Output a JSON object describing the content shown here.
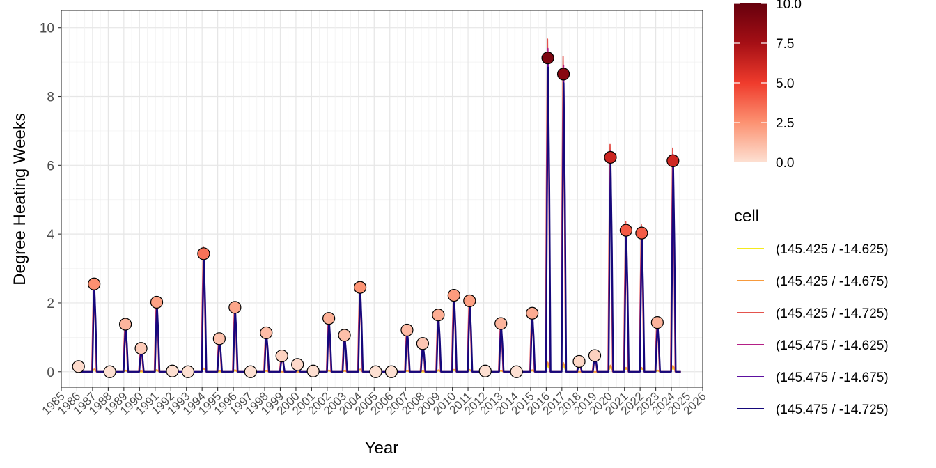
{
  "chart_data": {
    "type": "line",
    "xlabel": "Year",
    "ylabel": "Degree Heating Weeks",
    "xlim": [
      1985,
      2026
    ],
    "ylim": [
      -0.45,
      10.5
    ],
    "y_ticks": [
      0,
      2,
      4,
      6,
      8,
      10
    ],
    "x_ticks": [
      1985,
      1986,
      1987,
      1988,
      1989,
      1990,
      1991,
      1992,
      1993,
      1994,
      1995,
      1996,
      1997,
      1998,
      1999,
      2000,
      2001,
      2002,
      2003,
      2004,
      2005,
      2006,
      2007,
      2008,
      2009,
      2010,
      2011,
      2012,
      2013,
      2014,
      2015,
      2016,
      2017,
      2018,
      2019,
      2020,
      2021,
      2022,
      2023,
      2024,
      2025,
      2026
    ],
    "grid": true,
    "colorbar": {
      "ticks": [
        0.0,
        2.5,
        5.0,
        7.5,
        10.0
      ],
      "tick_labels": [
        "0.0",
        "2.5",
        "5.0",
        "7.5",
        "10.0"
      ],
      "range": [
        0,
        10
      ],
      "colors": [
        "#fde0d2",
        "#fc9272",
        "#ef3b2c",
        "#a50f15",
        "#67000d"
      ]
    },
    "legend": {
      "title": "cell",
      "placement": "right",
      "entries": [
        {
          "name": "(145.425 / -14.625)",
          "color": "#f4ea1e"
        },
        {
          "name": "(145.425 / -14.675)",
          "color": "#f79a3c"
        },
        {
          "name": "(145.425 / -14.725)",
          "color": "#e4534d"
        },
        {
          "name": "(145.475 / -14.625)",
          "color": "#b41f86"
        },
        {
          "name": "(145.475 / -14.675)",
          "color": "#5c0fa0"
        },
        {
          "name": "(145.475 / -14.725)",
          "color": "#15087a"
        }
      ]
    },
    "annual_max": [
      {
        "x": 1986.1,
        "y": 0.15
      },
      {
        "x": 1987.1,
        "y": 2.55
      },
      {
        "x": 1988.1,
        "y": 0.0
      },
      {
        "x": 1989.1,
        "y": 1.38
      },
      {
        "x": 1990.1,
        "y": 0.68
      },
      {
        "x": 1991.1,
        "y": 2.02
      },
      {
        "x": 1992.1,
        "y": 0.02
      },
      {
        "x": 1993.1,
        "y": 0.0
      },
      {
        "x": 1994.1,
        "y": 3.43
      },
      {
        "x": 1995.1,
        "y": 0.96
      },
      {
        "x": 1996.1,
        "y": 1.87
      },
      {
        "x": 1997.1,
        "y": 0.0
      },
      {
        "x": 1998.1,
        "y": 1.13
      },
      {
        "x": 1999.1,
        "y": 0.46
      },
      {
        "x": 2000.1,
        "y": 0.21
      },
      {
        "x": 2001.1,
        "y": 0.02
      },
      {
        "x": 2002.1,
        "y": 1.55
      },
      {
        "x": 2003.1,
        "y": 1.06
      },
      {
        "x": 2004.1,
        "y": 2.45
      },
      {
        "x": 2005.1,
        "y": 0.0
      },
      {
        "x": 2006.1,
        "y": 0.0
      },
      {
        "x": 2007.1,
        "y": 1.21
      },
      {
        "x": 2008.1,
        "y": 0.82
      },
      {
        "x": 2009.1,
        "y": 1.65
      },
      {
        "x": 2010.1,
        "y": 2.22
      },
      {
        "x": 2011.1,
        "y": 2.06
      },
      {
        "x": 2012.1,
        "y": 0.02
      },
      {
        "x": 2013.1,
        "y": 1.4
      },
      {
        "x": 2014.1,
        "y": 0.0
      },
      {
        "x": 2015.1,
        "y": 1.7
      },
      {
        "x": 2016.1,
        "y": 9.12
      },
      {
        "x": 2017.1,
        "y": 8.65
      },
      {
        "x": 2018.1,
        "y": 0.3
      },
      {
        "x": 2019.1,
        "y": 0.47
      },
      {
        "x": 2020.1,
        "y": 6.23
      },
      {
        "x": 2021.1,
        "y": 4.11
      },
      {
        "x": 2022.1,
        "y": 4.03
      },
      {
        "x": 2023.1,
        "y": 1.43
      },
      {
        "x": 2024.1,
        "y": 6.13
      }
    ]
  }
}
